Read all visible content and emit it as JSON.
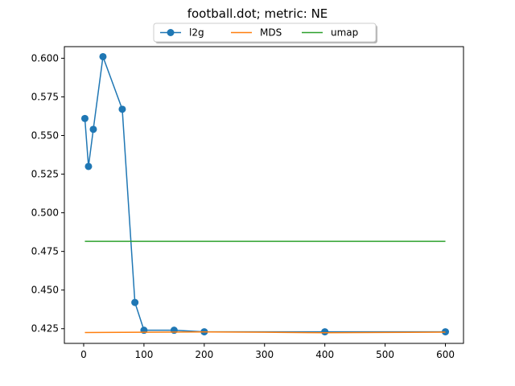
{
  "chart_data": {
    "type": "line",
    "title": "football.dot; metric: NE",
    "xlabel": "",
    "ylabel": "",
    "xlim": [
      -32,
      630
    ],
    "ylim": [
      0.4155,
      0.6075
    ],
    "xticks": [
      0,
      100,
      200,
      300,
      400,
      500,
      600
    ],
    "yticks": [
      0.425,
      0.45,
      0.475,
      0.5,
      0.525,
      0.55,
      0.575,
      0.6
    ],
    "xtick_labels": [
      "0",
      "100",
      "200",
      "300",
      "400",
      "500",
      "600"
    ],
    "ytick_labels": [
      "0.425",
      "0.450",
      "0.475",
      "0.500",
      "0.525",
      "0.550",
      "0.575",
      "0.600"
    ],
    "grid": false,
    "legend_position": "top-center, above plot",
    "series": [
      {
        "name": "l2g",
        "color": "#1f77b4",
        "marker": "circle",
        "x": [
          2,
          8,
          16,
          32,
          64,
          85,
          100,
          150,
          200,
          400,
          600
        ],
        "y": [
          0.561,
          0.53,
          0.554,
          0.601,
          0.567,
          0.442,
          0.424,
          0.424,
          0.423,
          0.423,
          0.423
        ]
      },
      {
        "name": "MDS",
        "color": "#ff7f0e",
        "marker": "none",
        "x": [
          2,
          100,
          200,
          300,
          400,
          500,
          600
        ],
        "y": [
          0.4225,
          0.4227,
          0.4229,
          0.4227,
          0.4224,
          0.4226,
          0.4228
        ]
      },
      {
        "name": "umap",
        "color": "#2ca02c",
        "marker": "none",
        "x": [
          2,
          600
        ],
        "y": [
          0.4815,
          0.4815
        ]
      }
    ]
  }
}
